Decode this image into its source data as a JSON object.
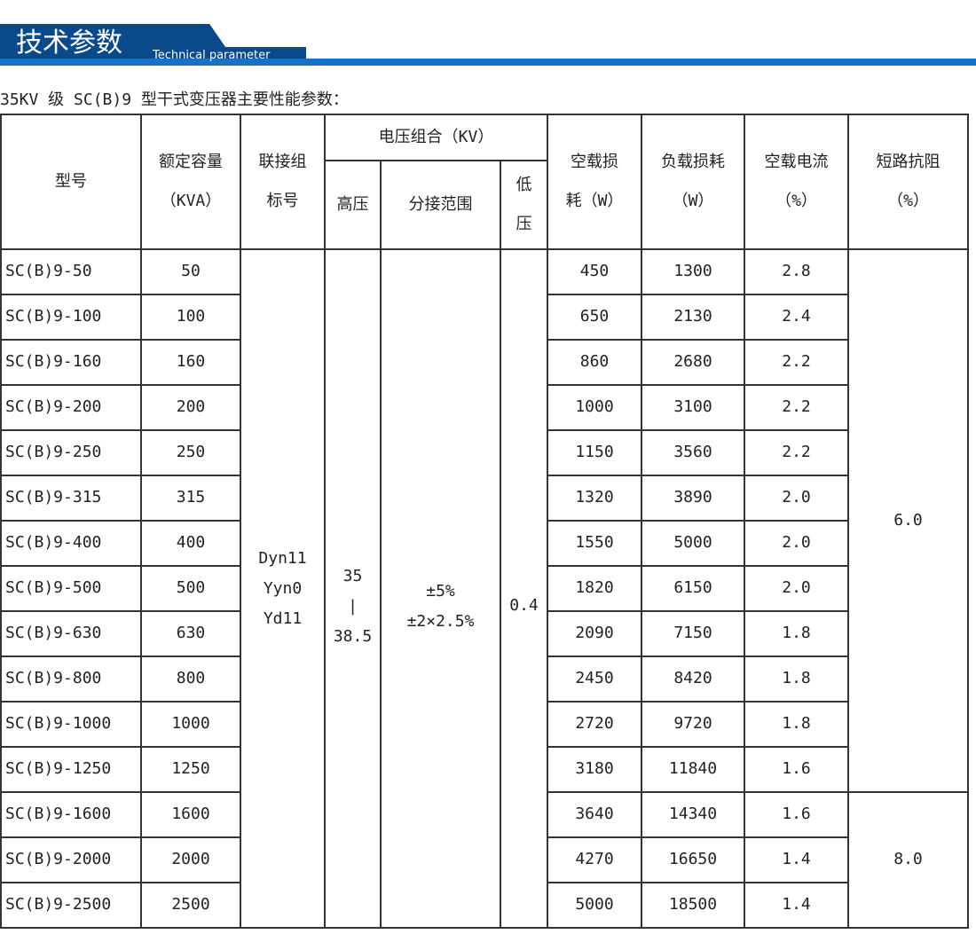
{
  "header": {
    "title": "技术参数",
    "subtitle": "Technical parameter"
  },
  "caption": "35KV 级 SC(B)9 型干式变压器主要性能参数：",
  "table": {
    "headers": {
      "model": "型号",
      "capacity": [
        "额定容量",
        "（KVA）"
      ],
      "connection": [
        "联接组",
        "标号"
      ],
      "voltage": "电压组合（KV）",
      "hv": "高压",
      "tap": "分接范围",
      "lv": [
        "低",
        "压"
      ],
      "noload_loss": [
        "空载损",
        "耗（W）"
      ],
      "load_loss": [
        "负载损耗",
        "（W）"
      ],
      "noload_current": [
        "空载电流",
        "（%）"
      ],
      "impedance": [
        "短路抗阻",
        "（%）"
      ]
    },
    "rows": [
      [
        "SC(B)9-50",
        "50",
        "450",
        "1300",
        "2.8"
      ],
      [
        "SC(B)9-100",
        "100",
        "650",
        "2130",
        "2.4"
      ],
      [
        "SC(B)9-160",
        "160",
        "860",
        "2680",
        "2.2"
      ],
      [
        "SC(B)9-200",
        "200",
        "1000",
        "3100",
        "2.2"
      ],
      [
        "SC(B)9-250",
        "250",
        "1150",
        "3560",
        "2.2"
      ],
      [
        "SC(B)9-315",
        "315",
        "1320",
        "3890",
        "2.0"
      ],
      [
        "SC(B)9-400",
        "400",
        "1550",
        "5000",
        "2.0"
      ],
      [
        "SC(B)9-500",
        "500",
        "1820",
        "6150",
        "2.0"
      ],
      [
        "SC(B)9-630",
        "630",
        "2090",
        "7150",
        "1.8"
      ],
      [
        "SC(B)9-800",
        "800",
        "2450",
        "8420",
        "1.8"
      ],
      [
        "SC(B)9-1000",
        "1000",
        "2720",
        "9720",
        "1.8"
      ],
      [
        "SC(B)9-1250",
        "1250",
        "3180",
        "11840",
        "1.6"
      ],
      [
        "SC(B)9-1600",
        "1600",
        "3640",
        "14340",
        "1.6"
      ],
      [
        "SC(B)9-2000",
        "2000",
        "4270",
        "16650",
        "1.4"
      ],
      [
        "SC(B)9-2500",
        "2500",
        "5000",
        "18500",
        "1.4"
      ]
    ],
    "connection": [
      "Dyn11",
      "Yyn0",
      "Yd11"
    ],
    "hv": [
      "35",
      "|",
      "38.5"
    ],
    "tap": [
      "±5%",
      "±2×2.5%"
    ],
    "lv": "0.4",
    "impedance": [
      "6.0",
      "8.0"
    ]
  }
}
